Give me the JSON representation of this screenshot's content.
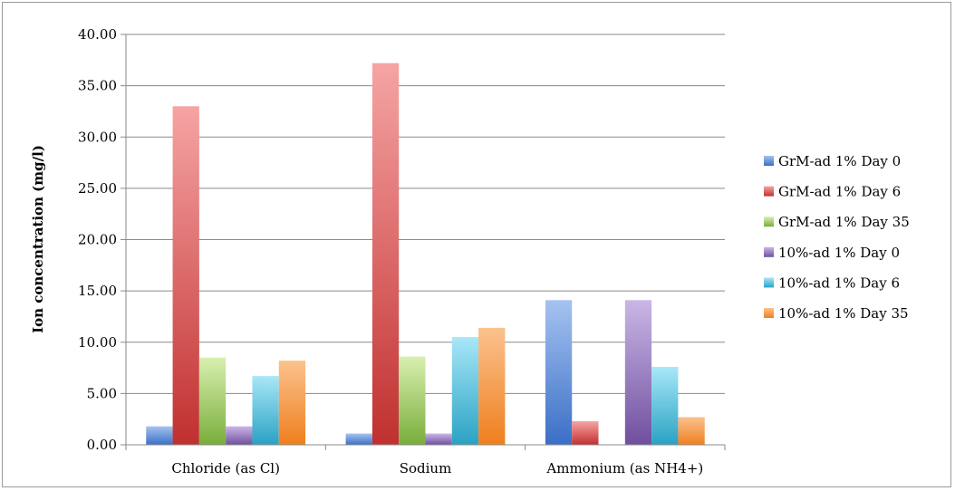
{
  "chart_data": {
    "type": "bar",
    "categories": [
      "Chloride (as Cl)",
      "Sodium",
      "Ammonium (as NH4+)"
    ],
    "series": [
      {
        "name": "GrM-ad 1% Day 0",
        "values": [
          1.8,
          1.1,
          14.1
        ],
        "color_top": "#a6c2f0",
        "color_bottom": "#3a6fc6"
      },
      {
        "name": "GrM-ad 1% Day 6",
        "values": [
          33.0,
          37.2,
          2.3
        ],
        "color_top": "#f6a4a4",
        "color_bottom": "#c0302f"
      },
      {
        "name": "GrM-ad 1% Day 35",
        "values": [
          8.5,
          8.6,
          0.0
        ],
        "color_top": "#d8efb0",
        "color_bottom": "#79ae3a"
      },
      {
        "name": "10%-ad 1% Day 0",
        "values": [
          1.8,
          1.1,
          14.1
        ],
        "color_top": "#c9b7e6",
        "color_bottom": "#704f9e"
      },
      {
        "name": "10%-ad 1% Day 6",
        "values": [
          6.7,
          10.5,
          7.6
        ],
        "color_top": "#a8e7f8",
        "color_bottom": "#2aa2c3"
      },
      {
        "name": "10%-ad 1% Day 35",
        "values": [
          8.2,
          11.4,
          2.7
        ],
        "color_top": "#fbc28e",
        "color_bottom": "#ef7f1e"
      }
    ],
    "ylabel": "Ion concentration (mg/l)",
    "ylim": [
      0,
      40
    ],
    "yticks": [
      "0.00",
      "5.00",
      "10.00",
      "15.00",
      "20.00",
      "25.00",
      "30.00",
      "35.00",
      "40.00"
    ],
    "grid": true,
    "legend_position": "right"
  }
}
